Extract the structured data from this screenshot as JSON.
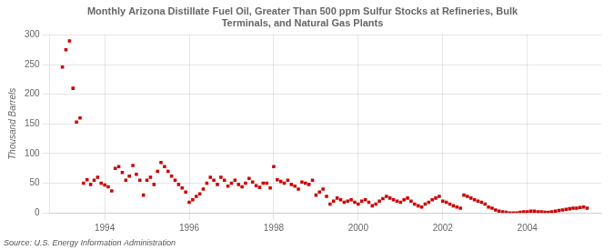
{
  "chart_data": {
    "type": "scatter",
    "title": "Monthly Arizona Distillate Fuel Oil, Greater Than 500 ppm Sulfur Stocks at Refineries, Bulk\nTerminals, and Natural Gas Plants",
    "y_label": "Thousand Barrels",
    "annotations": [
      "Source: U.S. Energy Information Administration"
    ],
    "color": "#cc0000",
    "marker": "square",
    "grid": true,
    "xlim": [
      1992.7,
      2005.75
    ],
    "xticks": [
      1994,
      1996,
      1998,
      2000,
      2002,
      2004
    ],
    "ylim": [
      0,
      300
    ],
    "yticks": [
      0,
      50,
      100,
      150,
      200,
      250,
      300
    ],
    "x": [
      1993.0,
      1993.083,
      1993.167,
      1993.25,
      1993.333,
      1993.417,
      1993.5,
      1993.583,
      1993.667,
      1993.75,
      1993.833,
      1993.917,
      1994.0,
      1994.083,
      1994.167,
      1994.25,
      1994.333,
      1994.417,
      1994.5,
      1994.583,
      1994.667,
      1994.75,
      1994.833,
      1994.917,
      1995.0,
      1995.083,
      1995.167,
      1995.25,
      1995.333,
      1995.417,
      1995.5,
      1995.583,
      1995.667,
      1995.75,
      1995.833,
      1995.917,
      1996.0,
      1996.083,
      1996.167,
      1996.25,
      1996.333,
      1996.417,
      1996.5,
      1996.583,
      1996.667,
      1996.75,
      1996.833,
      1996.917,
      1997.0,
      1997.083,
      1997.167,
      1997.25,
      1997.333,
      1997.417,
      1997.5,
      1997.583,
      1997.667,
      1997.75,
      1997.833,
      1997.917,
      1998.0,
      1998.083,
      1998.167,
      1998.25,
      1998.333,
      1998.417,
      1998.5,
      1998.583,
      1998.667,
      1998.75,
      1998.833,
      1998.917,
      1999.0,
      1999.083,
      1999.167,
      1999.25,
      1999.333,
      1999.417,
      1999.5,
      1999.583,
      1999.667,
      1999.75,
      1999.833,
      1999.917,
      2000.0,
      2000.083,
      2000.167,
      2000.25,
      2000.333,
      2000.417,
      2000.5,
      2000.583,
      2000.667,
      2000.75,
      2000.833,
      2000.917,
      2001.0,
      2001.083,
      2001.167,
      2001.25,
      2001.333,
      2001.417,
      2001.5,
      2001.583,
      2001.667,
      2001.75,
      2001.833,
      2001.917,
      2002.0,
      2002.083,
      2002.167,
      2002.25,
      2002.333,
      2002.417,
      2002.5,
      2002.583,
      2002.667,
      2002.75,
      2002.833,
      2002.917,
      2003.0,
      2003.083,
      2003.167,
      2003.25,
      2003.333,
      2003.417,
      2003.5,
      2003.583,
      2003.667,
      2003.75,
      2003.833,
      2003.917,
      2004.0,
      2004.083,
      2004.167,
      2004.25,
      2004.333,
      2004.417,
      2004.5,
      2004.583,
      2004.667,
      2004.75,
      2004.833,
      2004.917,
      2005.0,
      2005.083,
      2005.167,
      2005.25,
      2005.333,
      2005.417
    ],
    "values": [
      246,
      275,
      290,
      210,
      153,
      160,
      50,
      56,
      48,
      55,
      60,
      50,
      47,
      44,
      37,
      75,
      78,
      68,
      55,
      62,
      80,
      65,
      55,
      30,
      55,
      60,
      48,
      70,
      85,
      78,
      70,
      62,
      55,
      48,
      42,
      35,
      18,
      22,
      28,
      32,
      40,
      50,
      60,
      55,
      48,
      60,
      55,
      45,
      50,
      55,
      48,
      44,
      50,
      58,
      52,
      46,
      43,
      50,
      50,
      42,
      78,
      56,
      53,
      50,
      55,
      48,
      45,
      40,
      52,
      50,
      48,
      55,
      30,
      35,
      40,
      28,
      15,
      20,
      25,
      22,
      18,
      20,
      22,
      18,
      15,
      20,
      22,
      18,
      12,
      15,
      20,
      24,
      28,
      25,
      22,
      20,
      18,
      22,
      25,
      20,
      15,
      12,
      10,
      15,
      18,
      22,
      25,
      28,
      20,
      18,
      15,
      12,
      10,
      8,
      30,
      28,
      25,
      22,
      20,
      18,
      15,
      10,
      8,
      5,
      3,
      2,
      1,
      0,
      0,
      0,
      1,
      2,
      2,
      3,
      3,
      2,
      2,
      1,
      1,
      2,
      3,
      4,
      5,
      6,
      7,
      8,
      8,
      9,
      10,
      8
    ]
  }
}
